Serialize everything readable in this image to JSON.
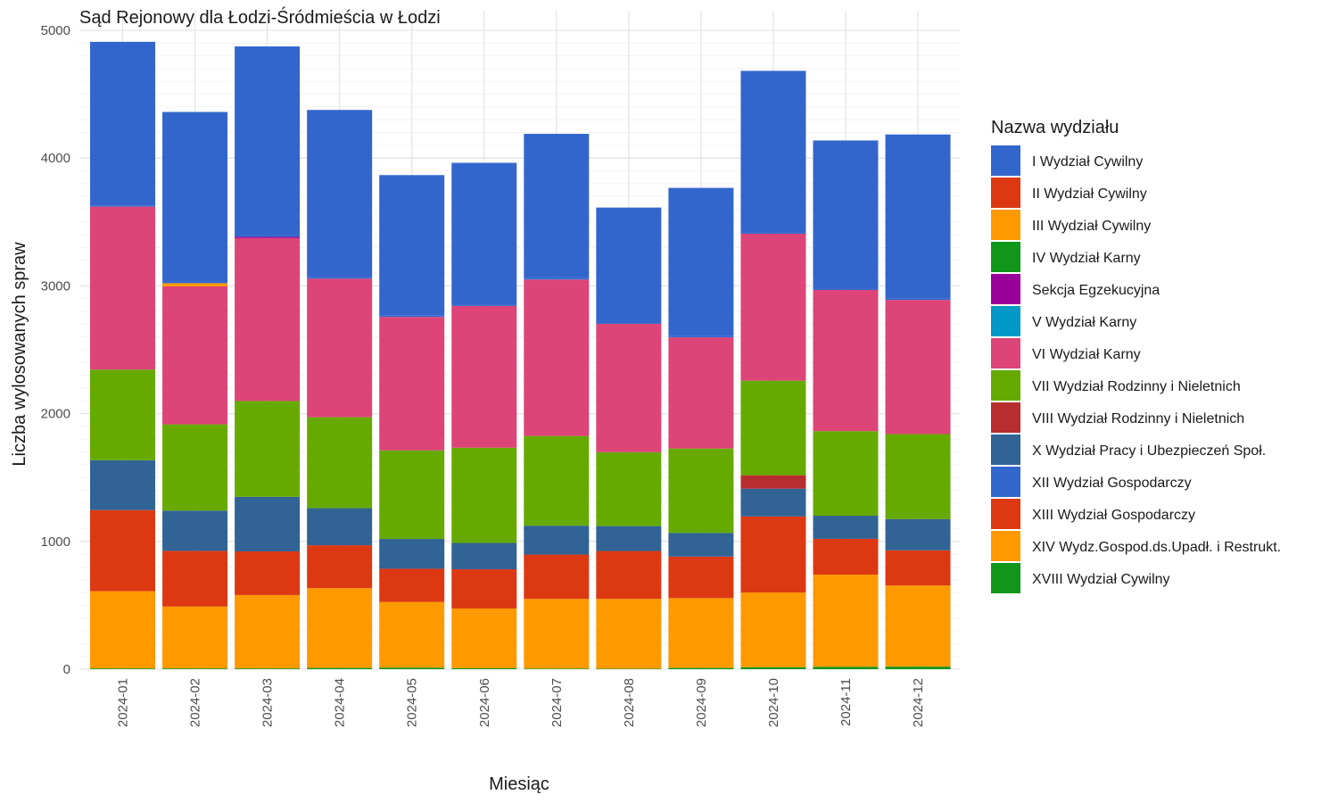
{
  "chart_data": {
    "type": "bar",
    "stacked": true,
    "title": "Sąd Rejonowy dla Łodzi-Śródmieścia w Łodzi",
    "xlabel": "Miesiąc",
    "ylabel": "Liczba wylosowanych spraw",
    "ylim": [
      0,
      5000
    ],
    "yticks": [
      0,
      1000,
      2000,
      3000,
      4000,
      5000
    ],
    "grid": true,
    "legend_title": "Nazwa wydziału",
    "legend_position": "right",
    "categories": [
      "2024-01",
      "2024-02",
      "2024-03",
      "2024-04",
      "2024-05",
      "2024-06",
      "2024-07",
      "2024-08",
      "2024-09",
      "2024-10",
      "2024-11",
      "2024-12"
    ],
    "series": [
      {
        "name": "XVIII Wydział Cywilny",
        "color": "#109618",
        "values": [
          6,
          6,
          6,
          10,
          12,
          8,
          5,
          4,
          10,
          15,
          18,
          20
        ]
      },
      {
        "name": "XIV Wydz.Gospod.ds.Upadł. i Restrukt.",
        "color": "#ff9900",
        "values": [
          604,
          484,
          574,
          624,
          514,
          467,
          545,
          546,
          546,
          585,
          722,
          635
        ]
      },
      {
        "name": "XIII Wydział Gospodarczy",
        "color": "#dc3912",
        "values": [
          635,
          436,
          342,
          336,
          260,
          307,
          347,
          375,
          325,
          595,
          280,
          275
        ]
      },
      {
        "name": "X Wydział Pracy i Ubezpieczeń Społ.",
        "color": "#316395",
        "values": [
          390,
          315,
          427,
          290,
          233,
          206,
          226,
          195,
          186,
          218,
          181,
          245
        ]
      },
      {
        "name": "VIII Wydział Rodzinny i Nieletnich",
        "color": "#b82e2e",
        "values": [
          0,
          0,
          0,
          0,
          0,
          0,
          0,
          0,
          0,
          105,
          0,
          0
        ]
      },
      {
        "name": "VII Wydział Rodzinny i Nieletnich",
        "color": "#66aa00",
        "values": [
          710,
          675,
          750,
          712,
          693,
          745,
          702,
          578,
          660,
          740,
          662,
          665
        ]
      },
      {
        "name": "VI Wydział Karny",
        "color": "#dd4477",
        "values": [
          1275,
          1080,
          1275,
          1085,
          1045,
          1110,
          1225,
          1005,
          870,
          1150,
          1105,
          1050
        ]
      },
      {
        "name": "V Wydział Karny",
        "color": "#0099c6",
        "values": [
          0,
          0,
          0,
          0,
          0,
          0,
          0,
          0,
          0,
          0,
          0,
          0
        ]
      },
      {
        "name": "Sekcja Egzekucyjna",
        "color": "#990099",
        "values": [
          0,
          0,
          10,
          0,
          0,
          0,
          0,
          0,
          0,
          0,
          0,
          0
        ]
      },
      {
        "name": "IV Wydział Karny",
        "color": "#109618",
        "values": [
          0,
          0,
          0,
          0,
          0,
          0,
          0,
          0,
          0,
          0,
          0,
          0
        ]
      },
      {
        "name": "III Wydział Cywilny",
        "color": "#ff9900",
        "values": [
          0,
          25,
          0,
          0,
          0,
          0,
          0,
          0,
          0,
          0,
          0,
          0
        ]
      },
      {
        "name": "II Wydział Cywilny",
        "color": "#dc3912",
        "values": [
          0,
          0,
          0,
          0,
          0,
          0,
          0,
          0,
          0,
          0,
          0,
          0
        ]
      },
      {
        "name": "XII Wydział Gospodarczy",
        "color": "#3366cc",
        "values": [
          10,
          10,
          10,
          10,
          10,
          10,
          10,
          10,
          10,
          10,
          10,
          10
        ]
      },
      {
        "name": "I Wydział Cywilny",
        "color": "#3366cc",
        "values": [
          1280,
          1330,
          1480,
          1310,
          1100,
          1110,
          1130,
          900,
          1160,
          1265,
          1160,
          1285
        ]
      }
    ],
    "legend_order": [
      "I Wydział Cywilny",
      "II Wydział Cywilny",
      "III Wydział Cywilny",
      "IV Wydział Karny",
      "Sekcja Egzekucyjna",
      "V Wydział Karny",
      "VI Wydział Karny",
      "VII Wydział Rodzinny i Nieletnich",
      "VIII Wydział Rodzinny i Nieletnich",
      "X Wydział Pracy i Ubezpieczeń Społ.",
      "XII Wydział Gospodarczy",
      "XIII Wydział Gospodarczy",
      "XIV Wydz.Gospod.ds.Upadł. i Restrukt.",
      "XVIII Wydział Cywilny"
    ]
  }
}
